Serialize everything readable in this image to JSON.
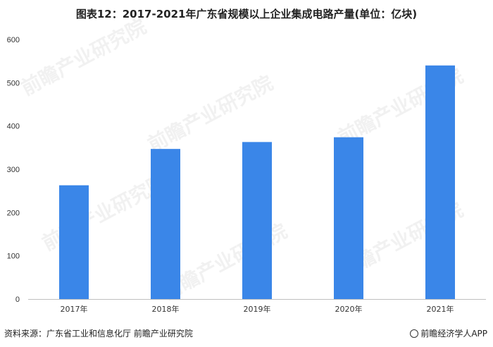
{
  "title": "图表12：2017-2021年广东省规模以上企业集成电路产量(单位：亿块)",
  "source": "资料来源：广东省工业和信息化厅 前瞻产业研究院",
  "brand": "前瞻经济学人APP",
  "watermark": "前瞻产业研究院",
  "colors": {
    "bar": "#3a86e8",
    "axis": "#bfbfbf"
  },
  "chart_data": {
    "type": "bar",
    "categories": [
      "2017年",
      "2018年",
      "2019年",
      "2020年",
      "2021年"
    ],
    "values": [
      263,
      347,
      363,
      374,
      540
    ],
    "ylim": [
      0,
      600
    ],
    "yticks": [
      0,
      100,
      200,
      300,
      400,
      500,
      600
    ],
    "xlabel": "",
    "ylabel": "",
    "grid": false
  }
}
